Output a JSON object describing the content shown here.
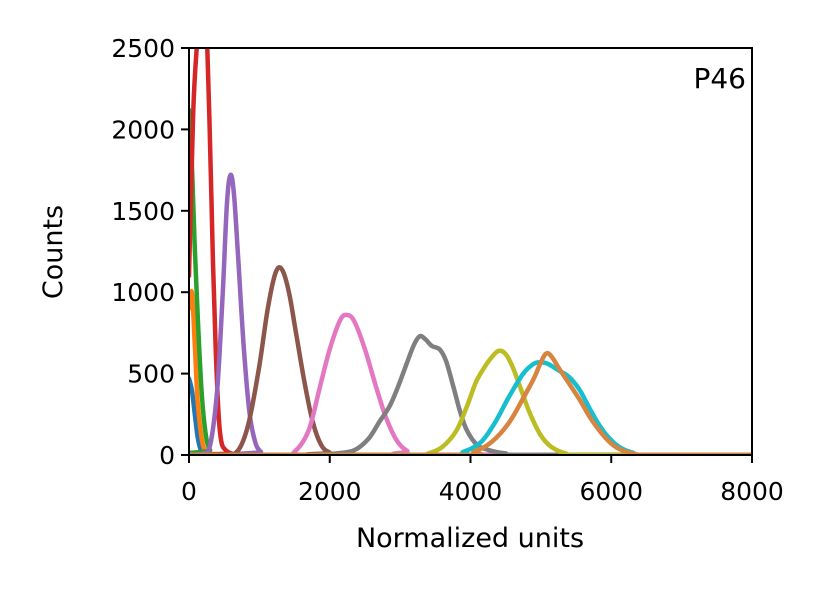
{
  "chart_data": {
    "type": "line",
    "title": "",
    "annotation": "P46",
    "xlabel": "Normalized units",
    "ylabel": "Counts",
    "xlim": [
      0,
      8000
    ],
    "ylim": [
      0,
      2500
    ],
    "xticks": [
      0,
      2000,
      4000,
      6000,
      8000
    ],
    "yticks": [
      0,
      500,
      1000,
      1500,
      2000,
      2500
    ],
    "grid": false,
    "legend": "none",
    "series": [
      {
        "color": "#1f77b4",
        "points": [
          [
            0,
            470
          ],
          [
            40,
            400
          ],
          [
            80,
            260
          ],
          [
            120,
            120
          ],
          [
            160,
            40
          ],
          [
            220,
            5
          ],
          [
            300,
            0
          ],
          [
            8000,
            0
          ]
        ]
      },
      {
        "color": "#ff7f0e",
        "points": [
          [
            0,
            900
          ],
          [
            40,
            1000
          ],
          [
            80,
            700
          ],
          [
            120,
            350
          ],
          [
            180,
            100
          ],
          [
            240,
            20
          ],
          [
            320,
            0
          ],
          [
            8000,
            0
          ]
        ]
      },
      {
        "color": "#2ca02c",
        "points": [
          [
            0,
            2120
          ],
          [
            40,
            1800
          ],
          [
            80,
            1300
          ],
          [
            130,
            800
          ],
          [
            180,
            380
          ],
          [
            240,
            120
          ],
          [
            300,
            30
          ],
          [
            380,
            0
          ],
          [
            8000,
            0
          ]
        ]
      },
      {
        "color": "#d62728",
        "points": [
          [
            0,
            1100
          ],
          [
            60,
            2100
          ],
          [
            110,
            2500
          ],
          [
            150,
            2700
          ],
          [
            180,
            2800
          ],
          [
            220,
            2700
          ],
          [
            260,
            2500
          ],
          [
            300,
            1900
          ],
          [
            340,
            1200
          ],
          [
            380,
            650
          ],
          [
            420,
            250
          ],
          [
            460,
            80
          ],
          [
            520,
            30
          ],
          [
            600,
            10
          ],
          [
            700,
            0
          ],
          [
            8000,
            0
          ]
        ]
      },
      {
        "color": "#9467bd",
        "points": [
          [
            0,
            0
          ],
          [
            200,
            10
          ],
          [
            300,
            60
          ],
          [
            400,
            400
          ],
          [
            480,
            1000
          ],
          [
            540,
            1550
          ],
          [
            590,
            1720
          ],
          [
            640,
            1600
          ],
          [
            700,
            1200
          ],
          [
            780,
            650
          ],
          [
            860,
            260
          ],
          [
            940,
            80
          ],
          [
            1020,
            20
          ],
          [
            1120,
            0
          ],
          [
            8000,
            0
          ]
        ]
      },
      {
        "color": "#8c564b",
        "points": [
          [
            0,
            0
          ],
          [
            500,
            0
          ],
          [
            700,
            30
          ],
          [
            850,
            200
          ],
          [
            1000,
            550
          ],
          [
            1120,
            900
          ],
          [
            1230,
            1120
          ],
          [
            1320,
            1140
          ],
          [
            1420,
            1000
          ],
          [
            1520,
            750
          ],
          [
            1640,
            450
          ],
          [
            1760,
            200
          ],
          [
            1880,
            60
          ],
          [
            2000,
            15
          ],
          [
            2150,
            0
          ],
          [
            8000,
            0
          ]
        ]
      },
      {
        "color": "#e377c2",
        "points": [
          [
            0,
            0
          ],
          [
            1300,
            0
          ],
          [
            1500,
            20
          ],
          [
            1700,
            150
          ],
          [
            1850,
            400
          ],
          [
            2000,
            650
          ],
          [
            2150,
            830
          ],
          [
            2250,
            860
          ],
          [
            2350,
            820
          ],
          [
            2500,
            650
          ],
          [
            2650,
            430
          ],
          [
            2800,
            230
          ],
          [
            2950,
            90
          ],
          [
            3100,
            25
          ],
          [
            3300,
            0
          ],
          [
            8000,
            0
          ]
        ]
      },
      {
        "color": "#7f7f7f",
        "points": [
          [
            0,
            0
          ],
          [
            1600,
            0
          ],
          [
            1900,
            5
          ],
          [
            2100,
            10
          ],
          [
            2350,
            30
          ],
          [
            2550,
            100
          ],
          [
            2700,
            200
          ],
          [
            2850,
            300
          ],
          [
            2980,
            430
          ],
          [
            3100,
            570
          ],
          [
            3200,
            680
          ],
          [
            3280,
            730
          ],
          [
            3360,
            710
          ],
          [
            3450,
            670
          ],
          [
            3560,
            650
          ],
          [
            3650,
            580
          ],
          [
            3750,
            430
          ],
          [
            3850,
            270
          ],
          [
            3950,
            150
          ],
          [
            4100,
            60
          ],
          [
            4300,
            25
          ],
          [
            4500,
            10
          ],
          [
            4700,
            0
          ],
          [
            8000,
            0
          ]
        ]
      },
      {
        "color": "#bcbd22",
        "points": [
          [
            0,
            0
          ],
          [
            3200,
            0
          ],
          [
            3400,
            10
          ],
          [
            3600,
            50
          ],
          [
            3800,
            150
          ],
          [
            3950,
            300
          ],
          [
            4080,
            450
          ],
          [
            4200,
            540
          ],
          [
            4300,
            600
          ],
          [
            4400,
            640
          ],
          [
            4500,
            620
          ],
          [
            4600,
            540
          ],
          [
            4720,
            400
          ],
          [
            4850,
            250
          ],
          [
            5000,
            120
          ],
          [
            5150,
            50
          ],
          [
            5350,
            10
          ],
          [
            5600,
            0
          ],
          [
            8000,
            0
          ]
        ]
      },
      {
        "color": "#17becf",
        "points": [
          [
            0,
            0
          ],
          [
            3600,
            0
          ],
          [
            3900,
            20
          ],
          [
            4150,
            80
          ],
          [
            4350,
            200
          ],
          [
            4550,
            360
          ],
          [
            4750,
            500
          ],
          [
            4900,
            560
          ],
          [
            5000,
            570
          ],
          [
            5100,
            560
          ],
          [
            5250,
            520
          ],
          [
            5400,
            480
          ],
          [
            5550,
            400
          ],
          [
            5700,
            280
          ],
          [
            5850,
            170
          ],
          [
            6000,
            90
          ],
          [
            6150,
            40
          ],
          [
            6300,
            15
          ],
          [
            6500,
            0
          ],
          [
            8000,
            0
          ]
        ]
      },
      {
        "color": "#d6843f",
        "points": [
          [
            0,
            0
          ],
          [
            3800,
            0
          ],
          [
            4050,
            20
          ],
          [
            4300,
            80
          ],
          [
            4550,
            200
          ],
          [
            4750,
            350
          ],
          [
            4900,
            470
          ],
          [
            5000,
            570
          ],
          [
            5080,
            625
          ],
          [
            5160,
            600
          ],
          [
            5260,
            530
          ],
          [
            5400,
            440
          ],
          [
            5550,
            340
          ],
          [
            5700,
            230
          ],
          [
            5850,
            140
          ],
          [
            6000,
            70
          ],
          [
            6150,
            30
          ],
          [
            6350,
            5
          ],
          [
            6600,
            0
          ],
          [
            8000,
            0
          ]
        ]
      }
    ]
  }
}
